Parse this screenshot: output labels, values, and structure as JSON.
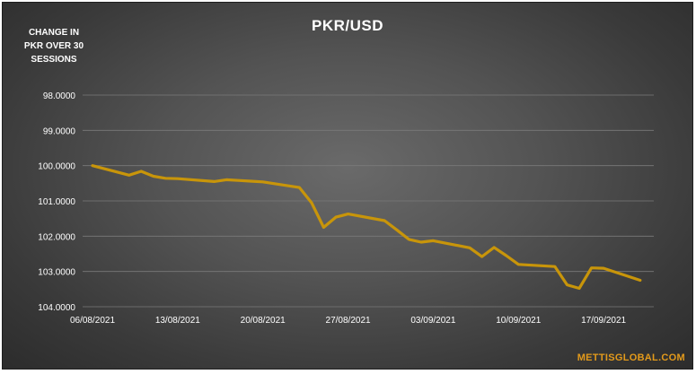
{
  "chart_data": {
    "type": "line",
    "title": "PKR/USD",
    "ylabel": "CHANGE IN PKR OVER 30 SESSIONS",
    "ylabel_lines": [
      "CHANGE IN",
      "PKR OVER 30",
      "SESSIONS"
    ],
    "xlabel": "",
    "y_reversed": true,
    "ylim": [
      98,
      104
    ],
    "y_ticks": [
      "98.0000",
      "99.0000",
      "100.0000",
      "101.0000",
      "102.0000",
      "103.0000",
      "104.0000"
    ],
    "x_ticks": [
      "06/08/2021",
      "13/08/2021",
      "20/08/2021",
      "27/08/2021",
      "03/09/2021",
      "10/09/2021",
      "17/09/2021"
    ],
    "grid": true,
    "legend": "none",
    "series": [
      {
        "color": "#c8950a",
        "x": [
          "2021-08-06",
          "2021-08-09",
          "2021-08-10",
          "2021-08-11",
          "2021-08-12",
          "2021-08-13",
          "2021-08-16",
          "2021-08-17",
          "2021-08-18",
          "2021-08-19",
          "2021-08-20",
          "2021-08-23",
          "2021-08-24",
          "2021-08-25",
          "2021-08-26",
          "2021-08-27",
          "2021-08-30",
          "2021-08-31",
          "2021-09-01",
          "2021-09-02",
          "2021-09-03",
          "2021-09-06",
          "2021-09-07",
          "2021-09-08",
          "2021-09-09",
          "2021-09-10",
          "2021-09-13",
          "2021-09-14",
          "2021-09-15",
          "2021-09-16",
          "2021-09-17",
          "2021-09-20"
        ],
        "values": [
          100.0,
          100.27,
          100.16,
          100.3,
          100.36,
          100.37,
          100.45,
          100.4,
          100.42,
          100.44,
          100.46,
          100.62,
          101.05,
          101.75,
          101.46,
          101.37,
          101.56,
          101.82,
          102.09,
          102.17,
          102.13,
          102.33,
          102.58,
          102.32,
          102.55,
          102.8,
          102.86,
          103.38,
          103.48,
          102.9,
          102.91,
          103.25
        ]
      }
    ]
  },
  "watermark": "METTISGLOBAL.COM"
}
